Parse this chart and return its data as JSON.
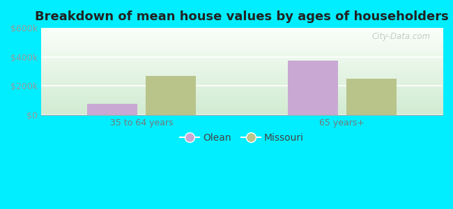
{
  "title": "Breakdown of mean house values by ages of householders",
  "categories": [
    "35 to 64 years",
    "65 years+"
  ],
  "olean_values": [
    75000,
    375000
  ],
  "missouri_values": [
    270000,
    250000
  ],
  "olean_color": "#c9a8d4",
  "missouri_color": "#b8c48a",
  "ylim": [
    0,
    600000
  ],
  "yticks": [
    0,
    200000,
    400000,
    600000
  ],
  "ytick_labels": [
    "$0",
    "$200k",
    "$400k",
    "$600k"
  ],
  "fig_bg_color": "#00eeff",
  "bar_width": 0.25,
  "legend_labels": [
    "Olean",
    "Missouri"
  ],
  "watermark": "City-Data.com",
  "title_fontsize": 13,
  "tick_fontsize": 9
}
